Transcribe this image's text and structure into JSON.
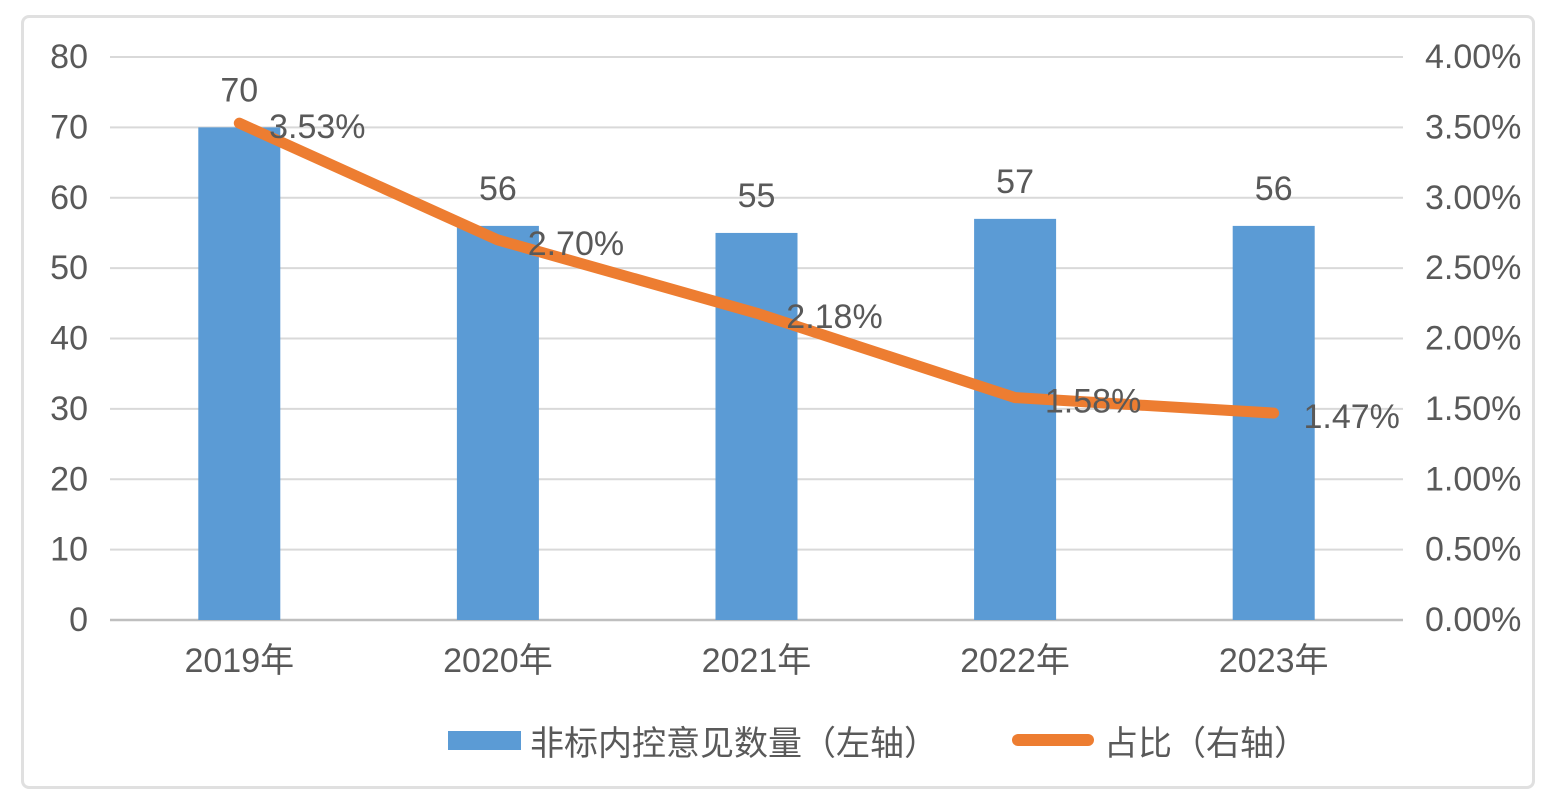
{
  "chart_data": {
    "type": "bar+line",
    "title": "",
    "categories": [
      "2019年",
      "2020年",
      "2021年",
      "2022年",
      "2023年"
    ],
    "series": [
      {
        "name": "非标内控意见数量（左轴）",
        "type": "bar",
        "axis": "left",
        "values": [
          70,
          56,
          55,
          57,
          56
        ],
        "labels": [
          "70",
          "56",
          "55",
          "57",
          "56"
        ],
        "color": "#5B9BD5"
      },
      {
        "name": "占比（右轴）",
        "type": "line",
        "axis": "right",
        "values": [
          3.53,
          2.7,
          2.18,
          1.58,
          1.47
        ],
        "labels": [
          "3.53%",
          "2.70%",
          "2.18%",
          "1.58%",
          "1.47%"
        ],
        "color": "#ED7D31"
      }
    ],
    "left_axis": {
      "min": 0,
      "max": 80,
      "step": 10,
      "ticks": [
        "0",
        "10",
        "20",
        "30",
        "40",
        "50",
        "60",
        "70",
        "80"
      ]
    },
    "right_axis": {
      "min": 0,
      "max": 4,
      "step": 0.5,
      "ticks": [
        "0.00%",
        "0.50%",
        "1.00%",
        "1.50%",
        "2.00%",
        "2.50%",
        "3.00%",
        "3.50%",
        "4.00%"
      ]
    },
    "grid": true,
    "legend_position": "bottom"
  },
  "legend": {
    "items": [
      {
        "label": "非标内控意见数量（左轴）"
      },
      {
        "label": "占比（右轴）"
      }
    ]
  },
  "colors": {
    "bar": "#5B9BD5",
    "line": "#ED7D31",
    "text": "#595959",
    "gridline": "#D9D9D9",
    "baseline": "#BFBFBF",
    "frame_border": "#E0E0E0",
    "background": "#FFFFFF"
  }
}
